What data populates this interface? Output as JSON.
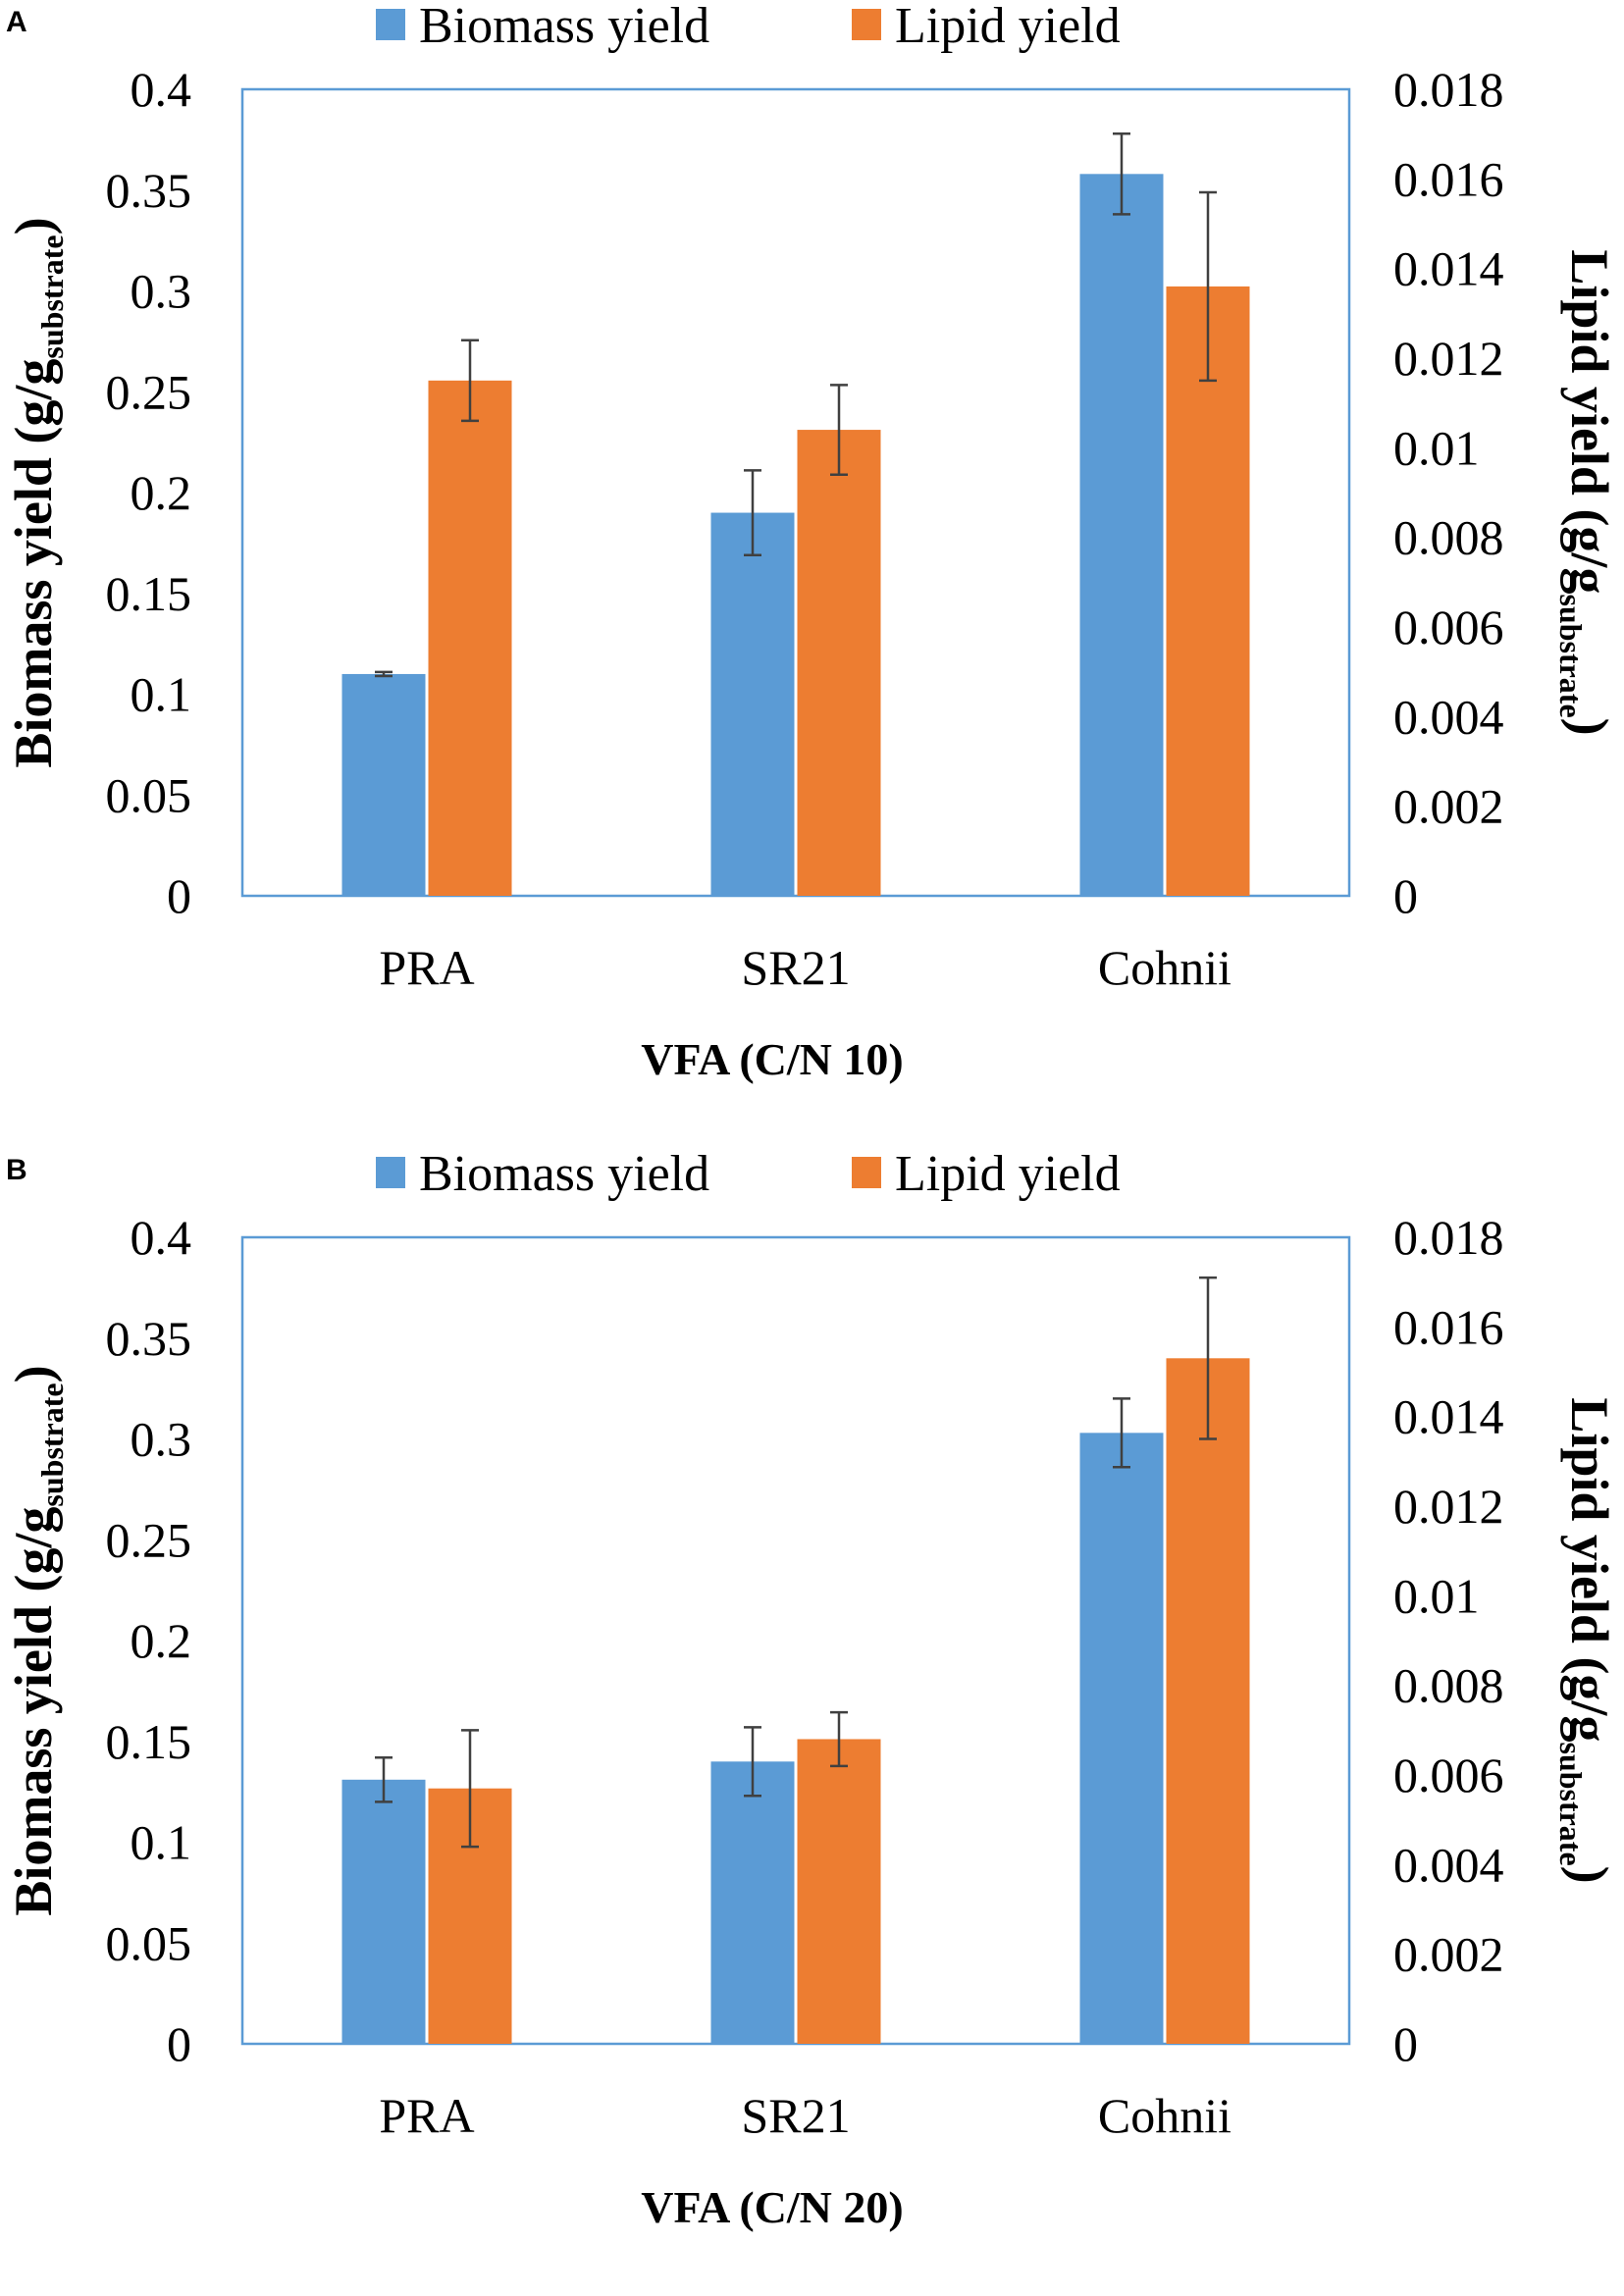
{
  "figure": {
    "legend": [
      {
        "label": "Biomass yield",
        "color": "#5b9bd5"
      },
      {
        "label": "Lipid yield",
        "color": "#ed7d31"
      }
    ]
  },
  "chart_data": [
    {
      "panel": "A",
      "type": "bar",
      "categories": [
        "PRA",
        "SR21",
        "Cohnii"
      ],
      "xlabel": "VFA (C/N 10)",
      "ylabel_left": {
        "main": "Biomass yield (g/g",
        "sub": "substrate",
        "close": ")"
      },
      "ylabel_right": {
        "main": "Lipid yield (g/g",
        "sub": "substrate",
        "close": ")"
      },
      "ylim_left": [
        0,
        0.4
      ],
      "ylim_right": [
        0,
        0.018
      ],
      "yticks_left": [
        "0",
        "0.05",
        "0.1",
        "0.15",
        "0.2",
        "0.25",
        "0.3",
        "0.35",
        "0.4"
      ],
      "yticks_right": [
        "0",
        "0.002",
        "0.004",
        "0.006",
        "0.008",
        "0.01",
        "0.012",
        "0.014",
        "0.016",
        "0.018"
      ],
      "series": [
        {
          "name": "Biomass yield",
          "axis": "left",
          "color": "#5b9bd5",
          "values": [
            0.11,
            0.19,
            0.358
          ],
          "errors": [
            0.001,
            0.021,
            0.02
          ]
        },
        {
          "name": "Lipid yield",
          "axis": "right",
          "color": "#ed7d31",
          "values": [
            0.0115,
            0.0104,
            0.0136
          ],
          "errors": [
            0.0009,
            0.001,
            0.0021
          ]
        }
      ],
      "legend_position": "top-center"
    },
    {
      "panel": "B",
      "type": "bar",
      "categories": [
        "PRA",
        "SR21",
        "Cohnii"
      ],
      "xlabel": "VFA (C/N 20)",
      "ylabel_left": {
        "main": "Biomass yield (g/g",
        "sub": "substrate",
        "close": ")"
      },
      "ylabel_right": {
        "main": "Lipid yield (g/g",
        "sub": "substrate",
        "close": ")"
      },
      "ylim_left": [
        0,
        0.4
      ],
      "ylim_right": [
        0,
        0.018
      ],
      "yticks_left": [
        "0",
        "0.05",
        "0.1",
        "0.15",
        "0.2",
        "0.25",
        "0.3",
        "0.35",
        "0.4"
      ],
      "yticks_right": [
        "0",
        "0.002",
        "0.004",
        "0.006",
        "0.008",
        "0.01",
        "0.012",
        "0.014",
        "0.016",
        "0.018"
      ],
      "series": [
        {
          "name": "Biomass yield",
          "axis": "left",
          "color": "#5b9bd5",
          "values": [
            0.131,
            0.14,
            0.303
          ],
          "errors": [
            0.011,
            0.017,
            0.017
          ]
        },
        {
          "name": "Lipid yield",
          "axis": "right",
          "color": "#ed7d31",
          "values": [
            0.0057,
            0.0068,
            0.0153
          ],
          "errors": [
            0.0013,
            0.0006,
            0.0018
          ]
        }
      ],
      "legend_position": "top-center"
    }
  ]
}
